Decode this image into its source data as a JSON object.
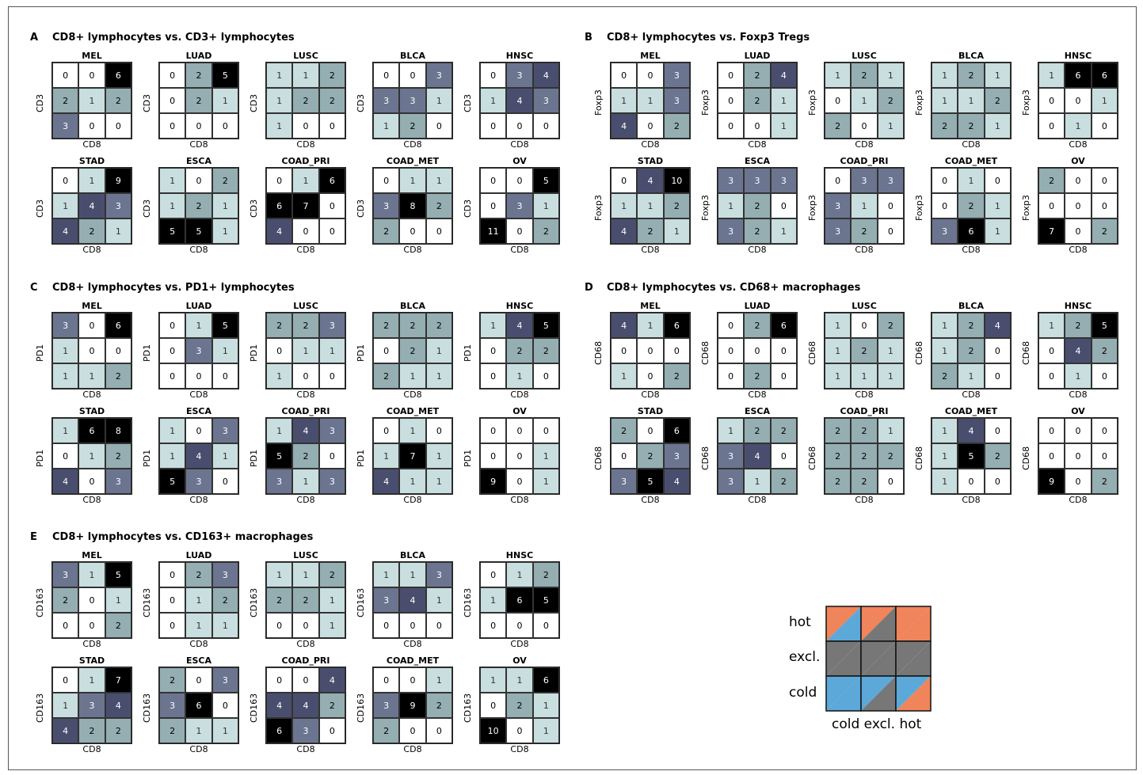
{
  "tumor_types": [
    "MEL",
    "LUAD",
    "LUSC",
    "BLCA",
    "HNSC",
    "STAD",
    "ESCA",
    "COAD_PRI",
    "COAD_MET",
    "OV"
  ],
  "chart_data": [
    {
      "type": "heatmap",
      "panel_label": "A",
      "title": "CD8+ lymphocytes vs. CD3+ lymphocytes",
      "xlabel": "CD8",
      "ylabel": "CD3",
      "matrices": [
        [
          [
            0,
            0,
            6
          ],
          [
            2,
            1,
            2
          ],
          [
            3,
            0,
            0
          ]
        ],
        [
          [
            0,
            2,
            5
          ],
          [
            0,
            2,
            1
          ],
          [
            0,
            0,
            0
          ]
        ],
        [
          [
            1,
            1,
            2
          ],
          [
            1,
            2,
            2
          ],
          [
            1,
            0,
            0
          ]
        ],
        [
          [
            0,
            0,
            3
          ],
          [
            3,
            3,
            1
          ],
          [
            1,
            2,
            0
          ]
        ],
        [
          [
            0,
            3,
            4
          ],
          [
            1,
            4,
            3
          ],
          [
            0,
            0,
            0
          ]
        ],
        [
          [
            0,
            1,
            9
          ],
          [
            1,
            4,
            3
          ],
          [
            4,
            2,
            1
          ]
        ],
        [
          [
            1,
            0,
            2
          ],
          [
            1,
            2,
            1
          ],
          [
            5,
            5,
            1
          ]
        ],
        [
          [
            0,
            1,
            6
          ],
          [
            6,
            7,
            0
          ],
          [
            4,
            0,
            0
          ]
        ],
        [
          [
            0,
            1,
            1
          ],
          [
            3,
            8,
            2
          ],
          [
            2,
            0,
            0
          ]
        ],
        [
          [
            0,
            0,
            5
          ],
          [
            0,
            3,
            1
          ],
          [
            11,
            0,
            2
          ]
        ]
      ]
    },
    {
      "type": "heatmap",
      "panel_label": "B",
      "title": "CD8+ lymphocytes vs. Foxp3 Tregs",
      "xlabel": "CD8",
      "ylabel": "Foxp3",
      "matrices": [
        [
          [
            0,
            0,
            3
          ],
          [
            1,
            1,
            3
          ],
          [
            4,
            0,
            2
          ]
        ],
        [
          [
            0,
            2,
            4
          ],
          [
            0,
            2,
            1
          ],
          [
            0,
            0,
            1
          ]
        ],
        [
          [
            1,
            2,
            1
          ],
          [
            0,
            1,
            2
          ],
          [
            2,
            0,
            1
          ]
        ],
        [
          [
            1,
            2,
            1
          ],
          [
            1,
            1,
            2
          ],
          [
            2,
            2,
            1
          ]
        ],
        [
          [
            1,
            6,
            6
          ],
          [
            0,
            0,
            1
          ],
          [
            0,
            1,
            0
          ]
        ],
        [
          [
            0,
            4,
            10
          ],
          [
            1,
            1,
            2
          ],
          [
            4,
            2,
            1
          ]
        ],
        [
          [
            3,
            3,
            3
          ],
          [
            1,
            2,
            0
          ],
          [
            3,
            2,
            1
          ]
        ],
        [
          [
            0,
            3,
            3
          ],
          [
            3,
            1,
            0
          ],
          [
            3,
            2,
            0
          ]
        ],
        [
          [
            0,
            1,
            0
          ],
          [
            0,
            2,
            1
          ],
          [
            3,
            6,
            1
          ]
        ],
        [
          [
            2,
            0,
            0
          ],
          [
            0,
            0,
            0
          ],
          [
            7,
            0,
            2
          ]
        ]
      ]
    },
    {
      "type": "heatmap",
      "panel_label": "C",
      "title": "CD8+ lymphocytes vs. PD1+ lymphocytes",
      "xlabel": "CD8",
      "ylabel": "PD1",
      "matrices": [
        [
          [
            3,
            0,
            6
          ],
          [
            1,
            0,
            0
          ],
          [
            1,
            1,
            2
          ]
        ],
        [
          [
            0,
            1,
            5
          ],
          [
            0,
            3,
            1
          ],
          [
            0,
            0,
            0
          ]
        ],
        [
          [
            2,
            2,
            3
          ],
          [
            0,
            1,
            1
          ],
          [
            1,
            0,
            0
          ]
        ],
        [
          [
            2,
            2,
            2
          ],
          [
            0,
            2,
            1
          ],
          [
            2,
            1,
            1
          ]
        ],
        [
          [
            1,
            4,
            5
          ],
          [
            0,
            2,
            2
          ],
          [
            0,
            1,
            0
          ]
        ],
        [
          [
            1,
            6,
            8
          ],
          [
            0,
            1,
            2
          ],
          [
            4,
            0,
            3
          ]
        ],
        [
          [
            1,
            0,
            3
          ],
          [
            1,
            4,
            1
          ],
          [
            5,
            3,
            0
          ]
        ],
        [
          [
            1,
            4,
            3
          ],
          [
            5,
            2,
            0
          ],
          [
            3,
            1,
            3
          ]
        ],
        [
          [
            0,
            1,
            0
          ],
          [
            1,
            7,
            1
          ],
          [
            4,
            1,
            1
          ]
        ],
        [
          [
            0,
            0,
            0
          ],
          [
            0,
            0,
            1
          ],
          [
            9,
            0,
            1
          ]
        ]
      ]
    },
    {
      "type": "heatmap",
      "panel_label": "D",
      "title": "CD8+ lymphocytes vs. CD68+ macrophages",
      "xlabel": "CD8",
      "ylabel": "CD68",
      "matrices": [
        [
          [
            4,
            1,
            6
          ],
          [
            0,
            0,
            0
          ],
          [
            1,
            0,
            2
          ]
        ],
        [
          [
            0,
            2,
            6
          ],
          [
            0,
            0,
            0
          ],
          [
            0,
            2,
            0
          ]
        ],
        [
          [
            1,
            0,
            2
          ],
          [
            1,
            2,
            1
          ],
          [
            1,
            1,
            1
          ]
        ],
        [
          [
            1,
            2,
            4
          ],
          [
            1,
            2,
            0
          ],
          [
            2,
            1,
            0
          ]
        ],
        [
          [
            1,
            2,
            5
          ],
          [
            0,
            4,
            2
          ],
          [
            0,
            1,
            0
          ]
        ],
        [
          [
            2,
            0,
            6
          ],
          [
            0,
            2,
            3
          ],
          [
            3,
            5,
            4
          ]
        ],
        [
          [
            1,
            2,
            2
          ],
          [
            3,
            4,
            0
          ],
          [
            3,
            1,
            2
          ]
        ],
        [
          [
            2,
            2,
            1
          ],
          [
            2,
            2,
            2
          ],
          [
            2,
            2,
            0
          ]
        ],
        [
          [
            1,
            4,
            0
          ],
          [
            1,
            5,
            2
          ],
          [
            1,
            0,
            0
          ]
        ],
        [
          [
            0,
            0,
            0
          ],
          [
            0,
            0,
            0
          ],
          [
            9,
            0,
            2
          ]
        ]
      ]
    },
    {
      "type": "heatmap",
      "panel_label": "E",
      "title": "CD8+ lymphocytes vs. CD163+ macrophages",
      "xlabel": "CD8",
      "ylabel": "CD163",
      "matrices": [
        [
          [
            3,
            1,
            5
          ],
          [
            2,
            0,
            1
          ],
          [
            0,
            0,
            2
          ]
        ],
        [
          [
            0,
            2,
            3
          ],
          [
            0,
            1,
            2
          ],
          [
            0,
            1,
            1
          ]
        ],
        [
          [
            1,
            1,
            2
          ],
          [
            2,
            2,
            1
          ],
          [
            0,
            0,
            1
          ]
        ],
        [
          [
            1,
            1,
            3
          ],
          [
            3,
            4,
            1
          ],
          [
            0,
            0,
            0
          ]
        ],
        [
          [
            0,
            1,
            2
          ],
          [
            1,
            6,
            5
          ],
          [
            0,
            0,
            0
          ]
        ],
        [
          [
            0,
            1,
            7
          ],
          [
            1,
            3,
            4
          ],
          [
            4,
            2,
            2
          ]
        ],
        [
          [
            2,
            0,
            3
          ],
          [
            3,
            6,
            0
          ],
          [
            2,
            1,
            1
          ]
        ],
        [
          [
            0,
            0,
            4
          ],
          [
            4,
            4,
            2
          ],
          [
            6,
            3,
            0
          ]
        ],
        [
          [
            0,
            0,
            1
          ],
          [
            3,
            9,
            2
          ],
          [
            2,
            0,
            0
          ]
        ],
        [
          [
            1,
            1,
            6
          ],
          [
            0,
            2,
            1
          ],
          [
            10,
            0,
            1
          ]
        ]
      ]
    }
  ],
  "legend": {
    "row_labels": [
      "hot",
      "excl.",
      "cold"
    ],
    "col_labels": "cold excl. hot",
    "colors": {
      "hot": "#f0845a",
      "excl": "#777777",
      "cold": "#5ca8d8"
    }
  }
}
